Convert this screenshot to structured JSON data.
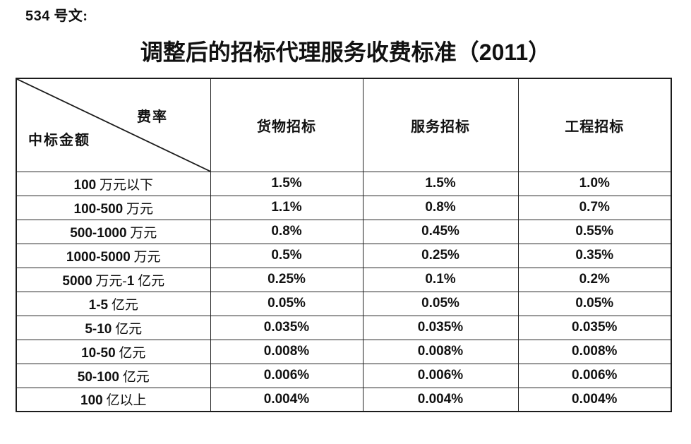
{
  "page": {
    "doc_number": "534 号文:",
    "title": "调整后的招标代理服务收费标准（2011）"
  },
  "table": {
    "corner": {
      "rate_label": "费率",
      "amount_label": "中标金额"
    },
    "columns": [
      "货物招标",
      "服务招标",
      "工程招标"
    ],
    "rows": [
      {
        "label": "100 万元以下",
        "values": [
          "1.5%",
          "1.5%",
          "1.0%"
        ]
      },
      {
        "label": "100-500 万元",
        "values": [
          "1.1%",
          "0.8%",
          "0.7%"
        ]
      },
      {
        "label": "500-1000 万元",
        "values": [
          "0.8%",
          "0.45%",
          "0.55%"
        ]
      },
      {
        "label": "1000-5000 万元",
        "values": [
          "0.5%",
          "0.25%",
          "0.35%"
        ]
      },
      {
        "label": "5000 万元-1 亿元",
        "values": [
          "0.25%",
          "0.1%",
          "0.2%"
        ]
      },
      {
        "label": "1-5 亿元",
        "values": [
          "0.05%",
          "0.05%",
          "0.05%"
        ]
      },
      {
        "label": "5-10 亿元",
        "values": [
          "0.035%",
          "0.035%",
          "0.035%"
        ]
      },
      {
        "label": "10-50 亿元",
        "values": [
          "0.008%",
          "0.008%",
          "0.008%"
        ]
      },
      {
        "label": "50-100 亿元",
        "values": [
          "0.006%",
          "0.006%",
          "0.006%"
        ]
      },
      {
        "label": "100 亿以上",
        "values": [
          "0.004%",
          "0.004%",
          "0.004%"
        ]
      }
    ],
    "colors": {
      "text": "#111111",
      "border": "#222222",
      "background": "#ffffff"
    }
  }
}
